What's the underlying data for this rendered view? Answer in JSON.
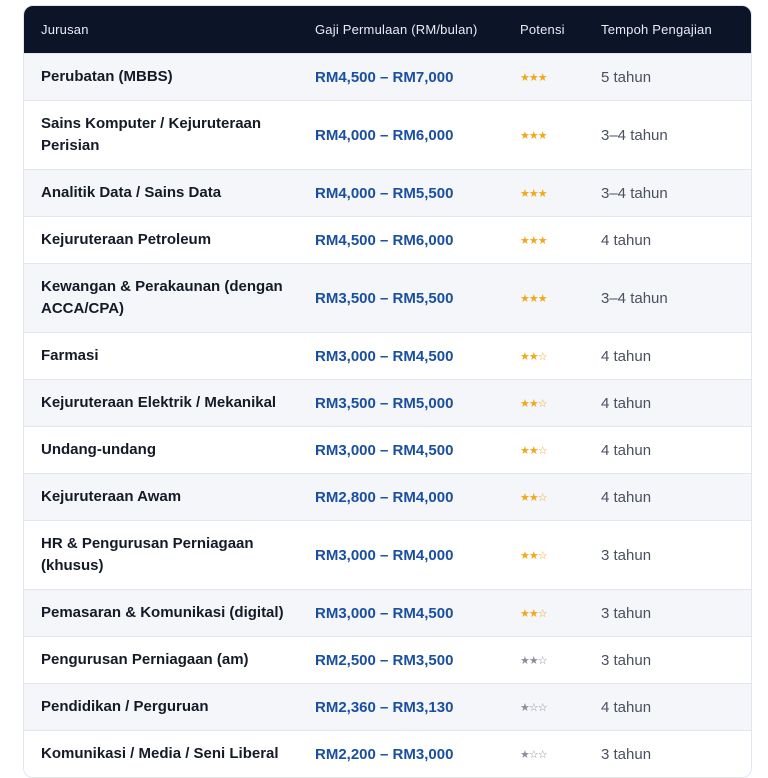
{
  "header": {
    "jurusan": "Jurusan",
    "gaji": "Gaji Permulaan (RM/bulan)",
    "potensi": "Potensi",
    "tempoh": "Tempoh Pengajian"
  },
  "colors": {
    "header_bg": "#0c1528",
    "salary": "#1a4fa0",
    "star_gold": "#f0a81c",
    "star_grey": "#8a8f99"
  },
  "rows": [
    {
      "jurusan": "Perubatan (MBBS)",
      "gaji": "RM4,500 – RM7,000",
      "potensi": "★★★",
      "stars": 3,
      "star_color": "gold",
      "tempoh": "5 tahun"
    },
    {
      "jurusan": "Sains Komputer / Kejuruteraan Perisian",
      "gaji": "RM4,000 – RM6,000",
      "potensi": "★★★",
      "stars": 3,
      "star_color": "gold",
      "tempoh": "3–4 tahun"
    },
    {
      "jurusan": "Analitik Data / Sains Data",
      "gaji": "RM4,000 – RM5,500",
      "potensi": "★★★",
      "stars": 3,
      "star_color": "gold",
      "tempoh": "3–4 tahun"
    },
    {
      "jurusan": "Kejuruteraan Petroleum",
      "gaji": "RM4,500 – RM6,000",
      "potensi": "★★★",
      "stars": 3,
      "star_color": "gold",
      "tempoh": "4 tahun"
    },
    {
      "jurusan": "Kewangan & Perakaunan (dengan ACCA/CPA)",
      "gaji": "RM3,500 – RM5,500",
      "potensi": "★★★",
      "stars": 3,
      "star_color": "gold",
      "tempoh": "3–4 tahun"
    },
    {
      "jurusan": "Farmasi",
      "gaji": "RM3,000 – RM4,500",
      "potensi": "★★☆",
      "stars": 2,
      "star_color": "gold",
      "tempoh": "4 tahun"
    },
    {
      "jurusan": "Kejuruteraan Elektrik / Mekanikal",
      "gaji": "RM3,500 – RM5,000",
      "potensi": "★★☆",
      "stars": 2,
      "star_color": "gold",
      "tempoh": "4 tahun"
    },
    {
      "jurusan": "Undang-undang",
      "gaji": "RM3,000 – RM4,500",
      "potensi": "★★☆",
      "stars": 2,
      "star_color": "gold",
      "tempoh": "4 tahun"
    },
    {
      "jurusan": "Kejuruteraan Awam",
      "gaji": "RM2,800 – RM4,000",
      "potensi": "★★☆",
      "stars": 2,
      "star_color": "gold",
      "tempoh": "4 tahun"
    },
    {
      "jurusan": "HR & Pengurusan Perniagaan (khusus)",
      "gaji": "RM3,000 – RM4,000",
      "potensi": "★★☆",
      "stars": 2,
      "star_color": "gold",
      "tempoh": "3 tahun"
    },
    {
      "jurusan": "Pemasaran & Komunikasi (digital)",
      "gaji": "RM3,000 – RM4,500",
      "potensi": "★★☆",
      "stars": 2,
      "star_color": "gold",
      "tempoh": "3 tahun"
    },
    {
      "jurusan": "Pengurusan Perniagaan (am)",
      "gaji": "RM2,500 – RM3,500",
      "potensi": "★★☆",
      "stars": 2,
      "star_color": "grey",
      "tempoh": "3 tahun"
    },
    {
      "jurusan": "Pendidikan / Perguruan",
      "gaji": "RM2,360 – RM3,130",
      "potensi": "★☆☆",
      "stars": 1,
      "star_color": "grey",
      "tempoh": "4 tahun"
    },
    {
      "jurusan": "Komunikasi / Media / Seni Liberal",
      "gaji": "RM2,200 – RM3,000",
      "potensi": "★☆☆",
      "stars": 1,
      "star_color": "grey",
      "tempoh": "3 tahun"
    }
  ]
}
